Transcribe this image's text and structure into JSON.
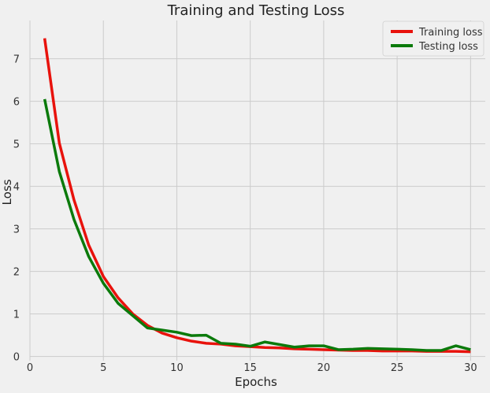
{
  "chart_data": {
    "type": "line",
    "title": "Training and Testing Loss",
    "xlabel": "Epochs",
    "ylabel": "Loss",
    "xlim": [
      0,
      31
    ],
    "ylim": [
      -0.1,
      7.9
    ],
    "xticks": [
      0,
      5,
      10,
      15,
      20,
      25,
      30
    ],
    "yticks": [
      0,
      1,
      2,
      3,
      4,
      5,
      6,
      7
    ],
    "grid": true,
    "legend_position": "top-right",
    "x": [
      1,
      2,
      3,
      4,
      5,
      6,
      7,
      8,
      9,
      10,
      11,
      12,
      13,
      14,
      15,
      16,
      17,
      18,
      19,
      20,
      21,
      22,
      23,
      24,
      25,
      26,
      27,
      28,
      29,
      30
    ],
    "series": [
      {
        "name": "Training loss",
        "color": "#e8120c",
        "values": [
          7.48,
          5.02,
          3.68,
          2.62,
          1.88,
          1.38,
          1.0,
          0.73,
          0.55,
          0.44,
          0.36,
          0.31,
          0.29,
          0.25,
          0.23,
          0.21,
          0.2,
          0.18,
          0.17,
          0.16,
          0.15,
          0.14,
          0.14,
          0.13,
          0.13,
          0.13,
          0.12,
          0.12,
          0.12,
          0.11
        ]
      },
      {
        "name": "Testing loss",
        "color": "#0b7a0b",
        "values": [
          6.05,
          4.35,
          3.22,
          2.35,
          1.72,
          1.25,
          0.96,
          0.67,
          0.62,
          0.57,
          0.49,
          0.5,
          0.31,
          0.29,
          0.24,
          0.34,
          0.28,
          0.22,
          0.25,
          0.25,
          0.16,
          0.17,
          0.19,
          0.18,
          0.17,
          0.16,
          0.14,
          0.14,
          0.25,
          0.16
        ]
      }
    ]
  }
}
